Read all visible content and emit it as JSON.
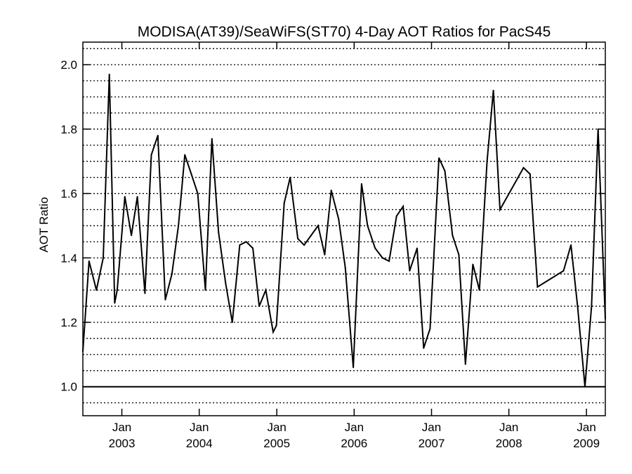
{
  "chart_data": {
    "type": "line",
    "title": "MODISA(AT39)/SeaWiFS(ST70) 4-Day AOT Ratios for PacS45",
    "xlabel": "",
    "ylabel": "AOT Ratio",
    "ylim": [
      0.91,
      2.07
    ],
    "yticks": [
      "1.0",
      "1.2",
      "1.4",
      "1.6",
      "1.8",
      "2.0"
    ],
    "xticks": [
      {
        "date": "2003-01-01",
        "month": "Jan",
        "year": "2003"
      },
      {
        "date": "2004-01-01",
        "month": "Jan",
        "year": "2004"
      },
      {
        "date": "2005-01-01",
        "month": "Jan",
        "year": "2005"
      },
      {
        "date": "2006-01-01",
        "month": "Jan",
        "year": "2006"
      },
      {
        "date": "2007-01-01",
        "month": "Jan",
        "year": "2007"
      },
      {
        "date": "2008-01-01",
        "month": "Jan",
        "year": "2008"
      },
      {
        "date": "2009-01-01",
        "month": "Jan",
        "year": "2009"
      }
    ],
    "xlim": [
      "2002-07-01",
      "2009-03-31"
    ],
    "grid": "horizontal-dotted",
    "reference_line": 1.0,
    "series": [
      {
        "points": [
          [
            "2002-07-01",
            1.11
          ],
          [
            "2002-07-30",
            1.39
          ],
          [
            "2002-09-03",
            1.3
          ],
          [
            "2002-10-05",
            1.4
          ],
          [
            "2002-11-03",
            1.97
          ],
          [
            "2002-11-28",
            1.26
          ],
          [
            "2002-12-10",
            1.3
          ],
          [
            "2003-01-15",
            1.59
          ],
          [
            "2003-02-15",
            1.47
          ],
          [
            "2003-03-15",
            1.59
          ],
          [
            "2003-04-20",
            1.29
          ],
          [
            "2003-05-20",
            1.72
          ],
          [
            "2003-06-20",
            1.78
          ],
          [
            "2003-07-25",
            1.27
          ],
          [
            "2003-08-25",
            1.35
          ],
          [
            "2003-09-25",
            1.5
          ],
          [
            "2003-10-25",
            1.72
          ],
          [
            "2003-11-25",
            1.66
          ],
          [
            "2003-12-25",
            1.6
          ],
          [
            "2004-01-30",
            1.3
          ],
          [
            "2004-03-01",
            1.77
          ],
          [
            "2004-04-01",
            1.48
          ],
          [
            "2004-05-05",
            1.32
          ],
          [
            "2004-06-05",
            1.2
          ],
          [
            "2004-07-10",
            1.44
          ],
          [
            "2004-08-10",
            1.45
          ],
          [
            "2004-09-10",
            1.43
          ],
          [
            "2004-10-10",
            1.25
          ],
          [
            "2004-11-10",
            1.3
          ],
          [
            "2004-12-15",
            1.17
          ],
          [
            "2004-12-30",
            1.19
          ],
          [
            "2005-02-05",
            1.57
          ],
          [
            "2005-03-05",
            1.65
          ],
          [
            "2005-04-10",
            1.46
          ],
          [
            "2005-05-10",
            1.44
          ],
          [
            "2005-07-15",
            1.5
          ],
          [
            "2005-08-15",
            1.41
          ],
          [
            "2005-09-15",
            1.61
          ],
          [
            "2005-10-20",
            1.52
          ],
          [
            "2005-11-20",
            1.37
          ],
          [
            "2005-12-28",
            1.06
          ],
          [
            "2006-02-05",
            1.63
          ],
          [
            "2006-03-05",
            1.5
          ],
          [
            "2006-04-10",
            1.43
          ],
          [
            "2006-05-15",
            1.4
          ],
          [
            "2006-06-15",
            1.39
          ],
          [
            "2006-07-20",
            1.53
          ],
          [
            "2006-08-20",
            1.56
          ],
          [
            "2006-09-20",
            1.36
          ],
          [
            "2006-10-25",
            1.43
          ],
          [
            "2006-11-25",
            1.12
          ],
          [
            "2006-12-25",
            1.18
          ],
          [
            "2007-02-05",
            1.71
          ],
          [
            "2007-03-05",
            1.67
          ],
          [
            "2007-04-10",
            1.47
          ],
          [
            "2007-05-10",
            1.41
          ],
          [
            "2007-06-10",
            1.07
          ],
          [
            "2007-07-15",
            1.38
          ],
          [
            "2007-08-15",
            1.3
          ],
          [
            "2007-09-20",
            1.7
          ],
          [
            "2007-10-20",
            1.92
          ],
          [
            "2007-11-20",
            1.55
          ],
          [
            "2008-03-10",
            1.68
          ],
          [
            "2008-04-10",
            1.66
          ],
          [
            "2008-05-15",
            1.31
          ],
          [
            "2008-09-15",
            1.36
          ],
          [
            "2008-10-20",
            1.44
          ],
          [
            "2008-11-20",
            1.25
          ],
          [
            "2008-12-25",
            1.0
          ],
          [
            "2009-01-25",
            1.25
          ],
          [
            "2009-02-25",
            1.8
          ],
          [
            "2009-03-31",
            1.21
          ]
        ]
      }
    ]
  }
}
